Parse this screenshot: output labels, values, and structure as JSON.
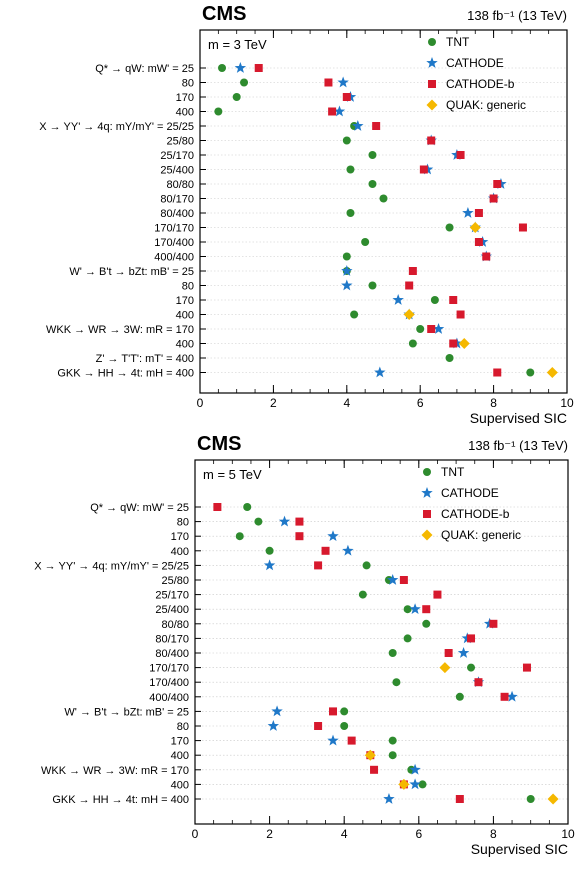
{
  "chart_data": [
    {
      "type": "scatter",
      "experiment": "CMS",
      "luminosity": "138 fb⁻¹ (13 TeV)",
      "mass_label": "m = 3 TeV",
      "xlabel": "Supervised SIC",
      "xlim": [
        0,
        10
      ],
      "xticks": [
        "0",
        "2",
        "4",
        "6",
        "8",
        "10"
      ],
      "legend_position": "top-right",
      "categories": [
        "Q* → qW: mW' = 25",
        "80",
        "170",
        "400",
        "X → YY' → 4q: mY/mY' = 25/25",
        "25/80",
        "25/170",
        "25/400",
        "80/80",
        "80/170",
        "80/400",
        "170/170",
        "170/400",
        "400/400",
        "W' → B't → bZt: mB' = 25",
        "80",
        "170",
        "400",
        "WKK → WR → 3W: mR = 170",
        "400",
        "Z' → T'T': mT' = 400",
        "GKK → HH → 4t: mH = 400"
      ],
      "series": [
        {
          "name": "TNT",
          "values": [
            0.6,
            1.2,
            1.0,
            0.5,
            4.2,
            4.0,
            4.7,
            4.1,
            4.7,
            5.0,
            4.1,
            6.8,
            4.5,
            4.0,
            4.0,
            4.7,
            6.4,
            4.2,
            6.0,
            5.8,
            6.8,
            9.0
          ]
        },
        {
          "name": "CATHODE",
          "values": [
            1.1,
            3.9,
            4.1,
            3.8,
            4.3,
            6.3,
            7.0,
            6.2,
            8.2,
            8.0,
            7.3,
            7.5,
            7.7,
            7.8,
            4.0,
            4.0,
            5.4,
            5.7,
            6.5,
            7.0,
            null,
            4.9
          ]
        },
        {
          "name": "CATHODE-b",
          "values": [
            1.6,
            3.5,
            4.0,
            3.6,
            4.8,
            6.3,
            7.1,
            6.1,
            8.1,
            8.0,
            7.6,
            8.8,
            7.6,
            7.8,
            5.8,
            5.7,
            6.9,
            7.1,
            6.3,
            6.9,
            null,
            8.1
          ]
        },
        {
          "name": "QUAK: generic",
          "values": [
            null,
            null,
            null,
            null,
            null,
            null,
            null,
            null,
            null,
            null,
            null,
            7.5,
            null,
            null,
            null,
            null,
            null,
            5.7,
            null,
            7.2,
            null,
            9.6
          ]
        }
      ]
    },
    {
      "type": "scatter",
      "experiment": "CMS",
      "luminosity": "138 fb⁻¹ (13 TeV)",
      "mass_label": "m = 5 TeV",
      "xlabel": "Supervised SIC",
      "xlim": [
        0,
        10
      ],
      "xticks": [
        "0",
        "2",
        "4",
        "6",
        "8",
        "10"
      ],
      "legend_position": "top-right",
      "categories": [
        "Q* → qW: mW' = 25",
        "80",
        "170",
        "400",
        "X → YY' → 4q: mY/mY' = 25/25",
        "25/80",
        "25/170",
        "25/400",
        "80/80",
        "80/170",
        "80/400",
        "170/170",
        "170/400",
        "400/400",
        "W' → B't → bZt: mB' = 25",
        "80",
        "170",
        "400",
        "WKK → WR → 3W: mR = 170",
        "400",
        "GKK → HH → 4t: mH = 400"
      ],
      "series": [
        {
          "name": "TNT",
          "values": [
            1.4,
            1.7,
            1.2,
            2.0,
            4.6,
            5.2,
            4.5,
            5.7,
            6.2,
            5.7,
            5.3,
            7.4,
            5.4,
            7.1,
            4.0,
            4.0,
            5.3,
            5.3,
            5.8,
            6.1,
            9.0
          ]
        },
        {
          "name": "CATHODE",
          "values": [
            null,
            2.4,
            3.7,
            4.1,
            2.0,
            5.3,
            null,
            5.9,
            7.9,
            7.3,
            7.2,
            null,
            7.6,
            8.5,
            2.2,
            2.1,
            3.7,
            null,
            5.9,
            5.9,
            5.2
          ]
        },
        {
          "name": "CATHODE-b",
          "values": [
            0.6,
            2.8,
            2.8,
            3.5,
            3.3,
            5.6,
            6.5,
            6.2,
            8.0,
            7.4,
            6.8,
            8.9,
            7.6,
            8.3,
            3.7,
            3.3,
            4.2,
            4.7,
            4.8,
            5.6,
            7.1
          ]
        },
        {
          "name": "QUAK: generic",
          "values": [
            null,
            null,
            null,
            null,
            null,
            null,
            null,
            null,
            null,
            null,
            null,
            6.7,
            null,
            null,
            null,
            null,
            null,
            4.7,
            null,
            5.6,
            9.6
          ]
        }
      ]
    }
  ],
  "colors": {
    "TNT": "#2e8b2e",
    "CATHODE": "#1f78c8",
    "CATHODE-b": "#d7192d",
    "QUAK: generic": "#f5b800",
    "grid": "#c8c8c8"
  },
  "markers": {
    "TNT": "circle",
    "CATHODE": "star",
    "CATHODE-b": "square",
    "QUAK: generic": "diamond"
  }
}
